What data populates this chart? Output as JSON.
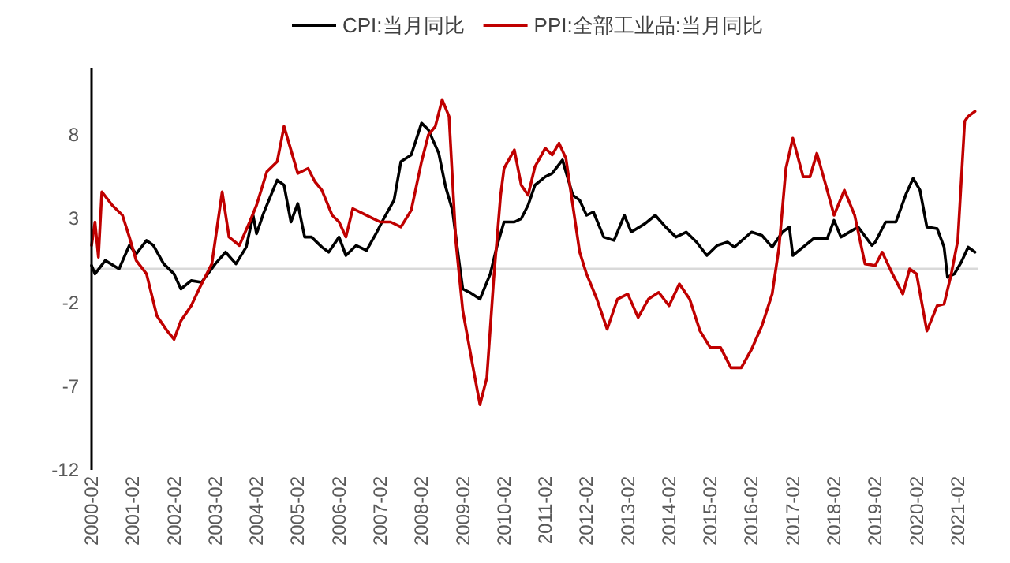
{
  "chart_data": {
    "type": "line",
    "legend": "top",
    "grid": false,
    "line_style": "solid",
    "marker": "none",
    "xlim": [
      "2000-02",
      "2021-08"
    ],
    "ylim": [
      -12,
      12
    ],
    "yticks": [
      8,
      3,
      -2,
      -7,
      -12
    ],
    "xticks": [
      "2000-02",
      "2001-02",
      "2002-02",
      "2003-02",
      "2004-02",
      "2005-02",
      "2006-02",
      "2007-02",
      "2008-02",
      "2009-02",
      "2010-02",
      "2011-02",
      "2012-02",
      "2013-02",
      "2014-02",
      "2015-02",
      "2016-02",
      "2017-02",
      "2018-02",
      "2019-02",
      "2020-02",
      "2021-02"
    ],
    "series": [
      {
        "name": "CPI:当月同比",
        "color": "#000000",
        "x": [
          "2000-02",
          "2000-03",
          "2000-06",
          "2000-10",
          "2001-01",
          "2001-03",
          "2001-06",
          "2001-08",
          "2001-11",
          "2002-02",
          "2002-04",
          "2002-07",
          "2002-10",
          "2003-02",
          "2003-05",
          "2003-08",
          "2003-11",
          "2004-01",
          "2004-02",
          "2004-04",
          "2004-08",
          "2004-10",
          "2004-12",
          "2005-02",
          "2005-04",
          "2005-06",
          "2005-09",
          "2005-11",
          "2006-02",
          "2006-04",
          "2006-07",
          "2006-10",
          "2007-01",
          "2007-03",
          "2007-06",
          "2007-08",
          "2007-11",
          "2008-02",
          "2008-04",
          "2008-07",
          "2008-09",
          "2008-11",
          "2009-01",
          "2009-02",
          "2009-04",
          "2009-07",
          "2009-10",
          "2009-12",
          "2010-02",
          "2010-05",
          "2010-07",
          "2010-09",
          "2010-11",
          "2011-02",
          "2011-04",
          "2011-07",
          "2011-10",
          "2011-12",
          "2012-02",
          "2012-04",
          "2012-07",
          "2012-10",
          "2013-01",
          "2013-03",
          "2013-07",
          "2013-10",
          "2014-01",
          "2014-04",
          "2014-07",
          "2014-10",
          "2015-01",
          "2015-04",
          "2015-07",
          "2015-09",
          "2016-02",
          "2016-05",
          "2016-08",
          "2016-11",
          "2017-01",
          "2017-02",
          "2017-05",
          "2017-08",
          "2017-12",
          "2018-02",
          "2018-04",
          "2018-09",
          "2019-01",
          "2019-02",
          "2019-05",
          "2019-08",
          "2019-11",
          "2020-01",
          "2020-03",
          "2020-05",
          "2020-08",
          "2020-10",
          "2020-11",
          "2021-01",
          "2021-03",
          "2021-05",
          "2021-07"
        ],
        "values": [
          0.2,
          -0.3,
          0.5,
          0,
          1.4,
          0.9,
          1.7,
          1.4,
          0.3,
          -0.3,
          -1.2,
          -0.7,
          -0.8,
          0.3,
          1,
          0.3,
          1.3,
          3.2,
          2.1,
          3.3,
          5.3,
          5.0,
          2.8,
          3.9,
          1.9,
          1.9,
          1.3,
          1.0,
          1.9,
          0.8,
          1.4,
          1.1,
          2.2,
          3.0,
          4.1,
          6.4,
          6.8,
          8.7,
          8.3,
          6.9,
          4.9,
          3.5,
          0.3,
          -1.2,
          -1.4,
          -1.8,
          -0.3,
          1.4,
          2.8,
          2.8,
          3.0,
          3.8,
          5.0,
          5.5,
          5.7,
          6.5,
          4.4,
          4.1,
          3.2,
          3.4,
          1.9,
          1.7,
          3.2,
          2.2,
          2.7,
          3.2,
          2.5,
          1.9,
          2.2,
          1.6,
          0.8,
          1.4,
          1.6,
          1.3,
          2.2,
          2.0,
          1.3,
          2.2,
          2.5,
          0.8,
          1.3,
          1.8,
          1.8,
          2.9,
          1.9,
          2.5,
          1.4,
          1.6,
          2.8,
          2.8,
          4.5,
          5.4,
          4.7,
          2.5,
          2.4,
          1.3,
          -0.5,
          -0.3,
          0.4,
          1.3,
          1.0
        ]
      },
      {
        "name": "PPI:全部工业品:当月同比",
        "color": "#c00000",
        "x": [
          "2000-02",
          "2000-03",
          "2000-04",
          "2000-05",
          "2000-08",
          "2000-11",
          "2001-01",
          "2001-03",
          "2001-06",
          "2001-09",
          "2001-12",
          "2002-02",
          "2002-04",
          "2002-07",
          "2002-10",
          "2003-01",
          "2003-04",
          "2003-06",
          "2003-09",
          "2003-12",
          "2004-02",
          "2004-05",
          "2004-08",
          "2004-10",
          "2004-12",
          "2005-02",
          "2005-05",
          "2005-07",
          "2005-09",
          "2005-12",
          "2006-02",
          "2006-04",
          "2006-06",
          "2006-09",
          "2006-12",
          "2007-02",
          "2007-05",
          "2007-08",
          "2007-11",
          "2008-02",
          "2008-04",
          "2008-06",
          "2008-08",
          "2008-10",
          "2008-12",
          "2009-02",
          "2009-05",
          "2009-07",
          "2009-09",
          "2009-11",
          "2010-01",
          "2010-02",
          "2010-05",
          "2010-07",
          "2010-09",
          "2010-11",
          "2011-02",
          "2011-04",
          "2011-06",
          "2011-08",
          "2011-10",
          "2011-12",
          "2012-02",
          "2012-05",
          "2012-08",
          "2012-11",
          "2013-02",
          "2013-05",
          "2013-08",
          "2013-11",
          "2014-02",
          "2014-05",
          "2014-08",
          "2014-11",
          "2015-02",
          "2015-05",
          "2015-08",
          "2015-11",
          "2016-02",
          "2016-05",
          "2016-08",
          "2016-10",
          "2016-12",
          "2017-02",
          "2017-05",
          "2017-07",
          "2017-09",
          "2017-12",
          "2018-02",
          "2018-05",
          "2018-08",
          "2018-11",
          "2019-02",
          "2019-04",
          "2019-07",
          "2019-10",
          "2019-12",
          "2020-02",
          "2020-05",
          "2020-08",
          "2020-10",
          "2020-12",
          "2021-02",
          "2021-04",
          "2021-05",
          "2021-07"
        ],
        "values": [
          1.4,
          2.8,
          0.7,
          4.6,
          3.8,
          3.2,
          1.9,
          0.5,
          -0.3,
          -2.8,
          -3.7,
          -4.2,
          -3.1,
          -2.2,
          -0.9,
          0.3,
          4.6,
          1.9,
          1.4,
          2.8,
          3.8,
          5.8,
          6.4,
          8.5,
          7.1,
          5.7,
          6.0,
          5.2,
          4.7,
          3.2,
          2.8,
          1.9,
          3.6,
          3.3,
          3.0,
          2.8,
          2.8,
          2.5,
          3.5,
          6.4,
          8.0,
          8.5,
          10.1,
          9.1,
          1.6,
          -2.5,
          -5.9,
          -8.1,
          -6.5,
          -0.6,
          4.4,
          6.0,
          7.1,
          5.0,
          4.4,
          6.1,
          7.2,
          6.8,
          7.5,
          6.6,
          3.8,
          1.0,
          -0.3,
          -1.8,
          -3.6,
          -1.8,
          -1.5,
          -2.9,
          -1.8,
          -1.4,
          -2.2,
          -0.9,
          -1.8,
          -3.7,
          -4.7,
          -4.7,
          -5.9,
          -5.9,
          -4.8,
          -3.4,
          -1.5,
          1.3,
          6.0,
          7.8,
          5.5,
          5.5,
          6.9,
          4.7,
          3.2,
          4.7,
          3.2,
          0.3,
          0.2,
          1.0,
          -0.3,
          -1.5,
          0.0,
          -0.3,
          -3.7,
          -2.2,
          -2.1,
          -0.4,
          1.7,
          8.8,
          9.1,
          9.4
        ]
      }
    ]
  }
}
